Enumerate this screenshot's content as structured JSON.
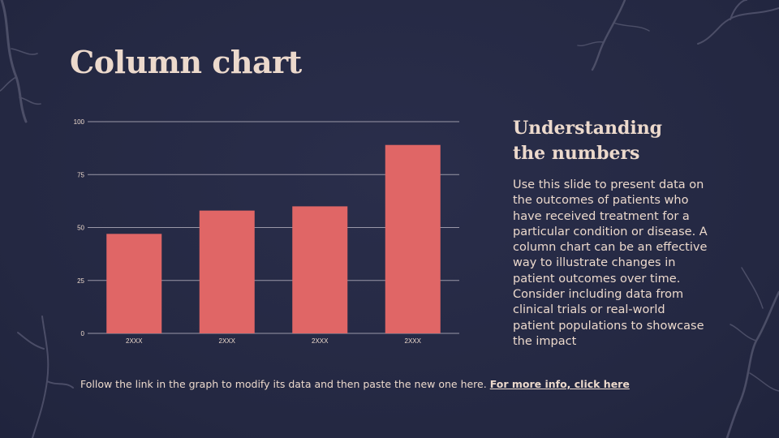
{
  "slide": {
    "title": "Column chart",
    "side_heading": "Understanding the numbers",
    "side_body": "Use this slide to present data on the outcomes of patients who have received treatment for a particular condition or disease. A column chart can be an effective way to illustrate changes in patient outcomes over time. Consider including data from clinical trials or real-world patient populations to showcase the impact",
    "footer_text": "Follow the link in the graph to modify its data and then paste the new one here.",
    "footer_link": "For more info, click here"
  },
  "colors": {
    "background": "#262a45",
    "bar": "#e06666",
    "text": "#ecd9cc",
    "grid": "#9a98a8"
  },
  "chart_data": {
    "type": "bar",
    "categories": [
      "2XXX",
      "2XXX",
      "2XXX",
      "2XXX"
    ],
    "values": [
      47,
      58,
      60,
      89
    ],
    "ylim": [
      0,
      100
    ],
    "yticks": [
      0,
      25,
      50,
      75,
      100
    ],
    "title": "",
    "xlabel": "",
    "ylabel": "",
    "grid": true
  }
}
